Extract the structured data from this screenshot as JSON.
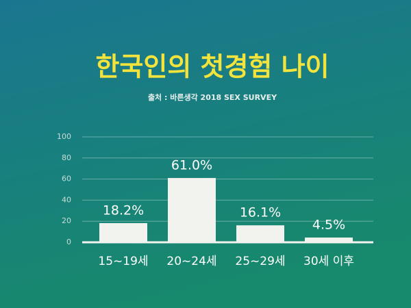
{
  "chart_data": {
    "type": "bar",
    "title": "한국인의 첫경험 나이",
    "subtitle": "출처 : 바른생각 2018 SEX SURVEY",
    "categories": [
      "15~19세",
      "20~24세",
      "25~29세",
      "30세 이후"
    ],
    "values": [
      18.2,
      61.0,
      16.1,
      4.5
    ],
    "value_labels": [
      "18.2%",
      "61.0%",
      "16.1%",
      "4.5%"
    ],
    "color": "#f2f2ee",
    "ylim": [
      0,
      100
    ],
    "yticks": [
      0,
      20,
      40,
      60,
      80,
      100
    ],
    "grid": true
  }
}
